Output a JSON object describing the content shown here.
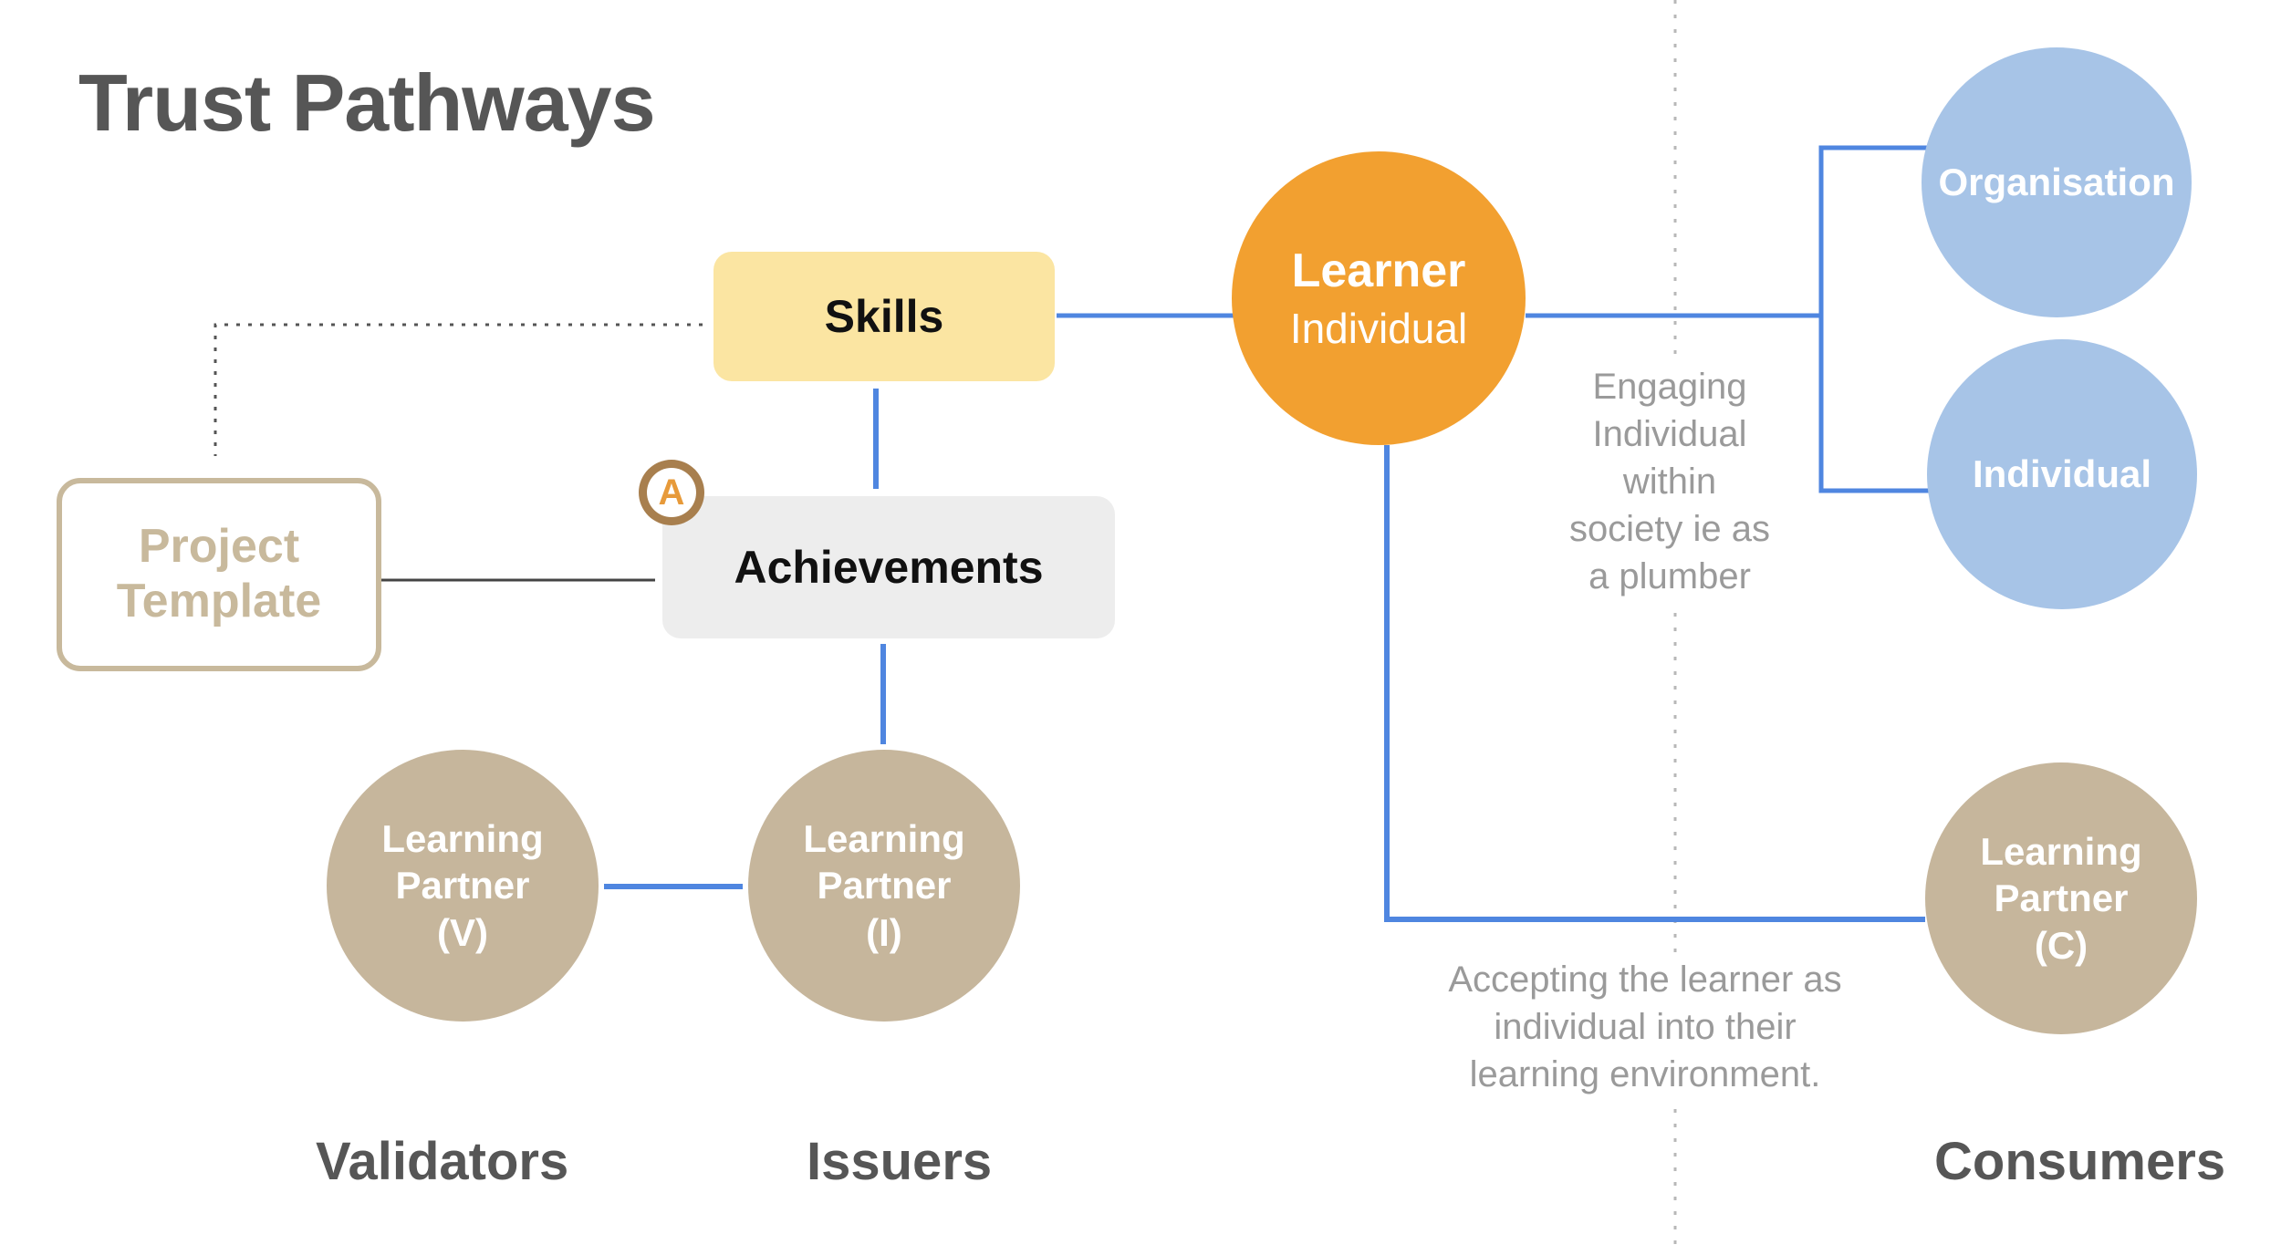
{
  "title": "Trust Pathways",
  "nodes": {
    "skills": "Skills",
    "achievements": "Achievements",
    "project_template": [
      "Project",
      "Template"
    ],
    "learner": {
      "name": "Learner",
      "sub": "Individual"
    },
    "organisation": "Organisation",
    "individual": "Individual",
    "learning_partner_v": [
      "Learning",
      "Partner",
      "(V)"
    ],
    "learning_partner_i": [
      "Learning",
      "Partner",
      "(I)"
    ],
    "learning_partner_c": [
      "Learning",
      "Partner",
      "(C)"
    ]
  },
  "badge": {
    "letter": "A",
    "icon": "achievement-badge-icon"
  },
  "notes": {
    "engaging": [
      "Engaging",
      "Individual",
      "within",
      "society ie as",
      "a plumber"
    ],
    "accepting": [
      "Accepting the learner as",
      "individual into their",
      "learning environment."
    ]
  },
  "roles": {
    "validators": "Validators",
    "issuers": "Issuers",
    "consumers": "Consumers"
  },
  "colors": {
    "connector": "#4f86e0",
    "learner": "#f2a030",
    "consumer_circle": "#a7c4e7",
    "partner_circle": "#c6b69c",
    "skills_box": "#fbe5a2",
    "achievements_box": "#ededed",
    "template_border": "#c8b99c"
  }
}
